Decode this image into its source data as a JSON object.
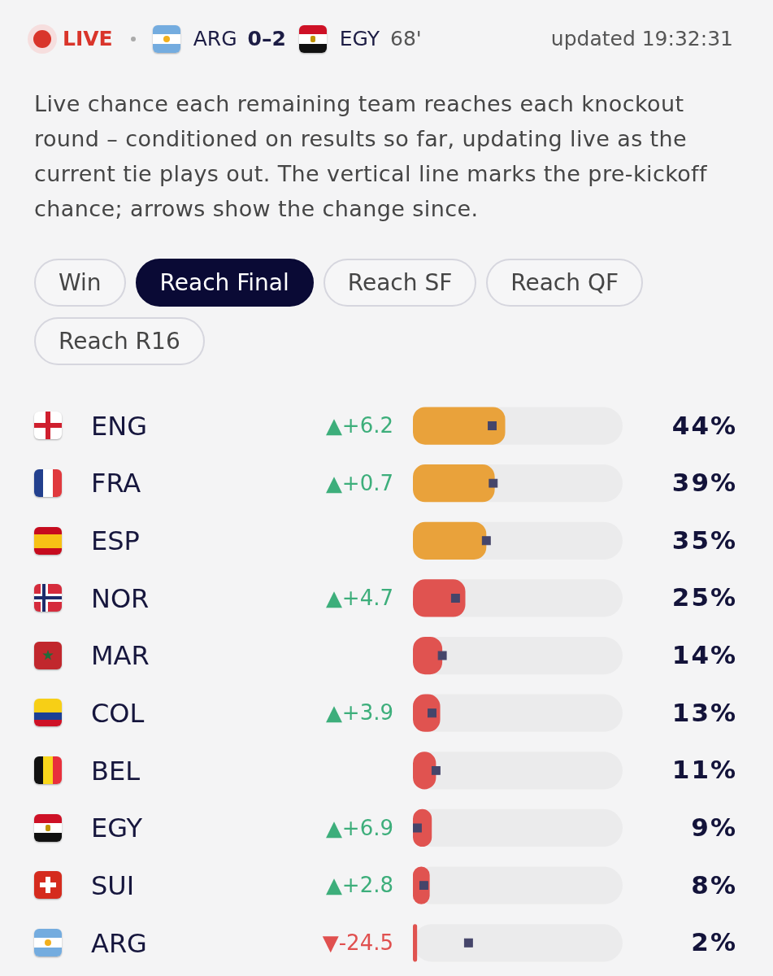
{
  "chart_data": {
    "type": "bar",
    "orientation": "horizontal",
    "subtitle": "Live chance each remaining team reaches each knockout round – conditioned on results so far, updating live as the current tie plays out. The vertical line marks the pre-kickoff chance; arrows show the change since.",
    "categories": [
      "ENG",
      "FRA",
      "ESP",
      "NOR",
      "MAR",
      "COL",
      "BEL",
      "EGY",
      "SUI",
      "ARG"
    ],
    "xlim": [
      0,
      100
    ],
    "tick_labels": "y",
    "series": [
      {
        "colors": [
          "#e9a23b",
          "#e9a23b",
          "#e9a23b",
          "#e05350",
          "#e05350",
          "#e05350",
          "#e05350",
          "#e05350",
          "#e05350",
          "#e05350"
        ],
        "values": [
          44,
          39,
          35,
          25,
          14,
          13,
          11,
          9,
          8,
          2
        ],
        "value_labels": [
          "44%",
          "39%",
          "35%",
          "25%",
          "14%",
          "13%",
          "11%",
          "9%",
          "8%",
          "2%"
        ]
      },
      {
        "type": "scatter",
        "color": "#45456a",
        "marker": "square",
        "x": [
          "ENG",
          "FRA",
          "ESP",
          "NOR",
          "MAR",
          "COL",
          "BEL",
          "EGY",
          "SUI",
          "ARG"
        ],
        "values": [
          37.8,
          38.3,
          35,
          20.3,
          14,
          9.1,
          11,
          2.1,
          5.2,
          26.5
        ]
      }
    ],
    "annotations": [
      "LIVE",
      "ARG",
      "0–2",
      "EGY",
      "68'",
      "updated 19:32:31",
      "Win",
      "Reach Final",
      "Reach SF",
      "Reach QF",
      "Reach R16",
      "▲+6.2",
      "▲+0.7",
      "▲+4.7",
      "▲+3.9",
      "▲+6.9",
      "▲+2.8",
      "▼-24.5"
    ]
  }
}
